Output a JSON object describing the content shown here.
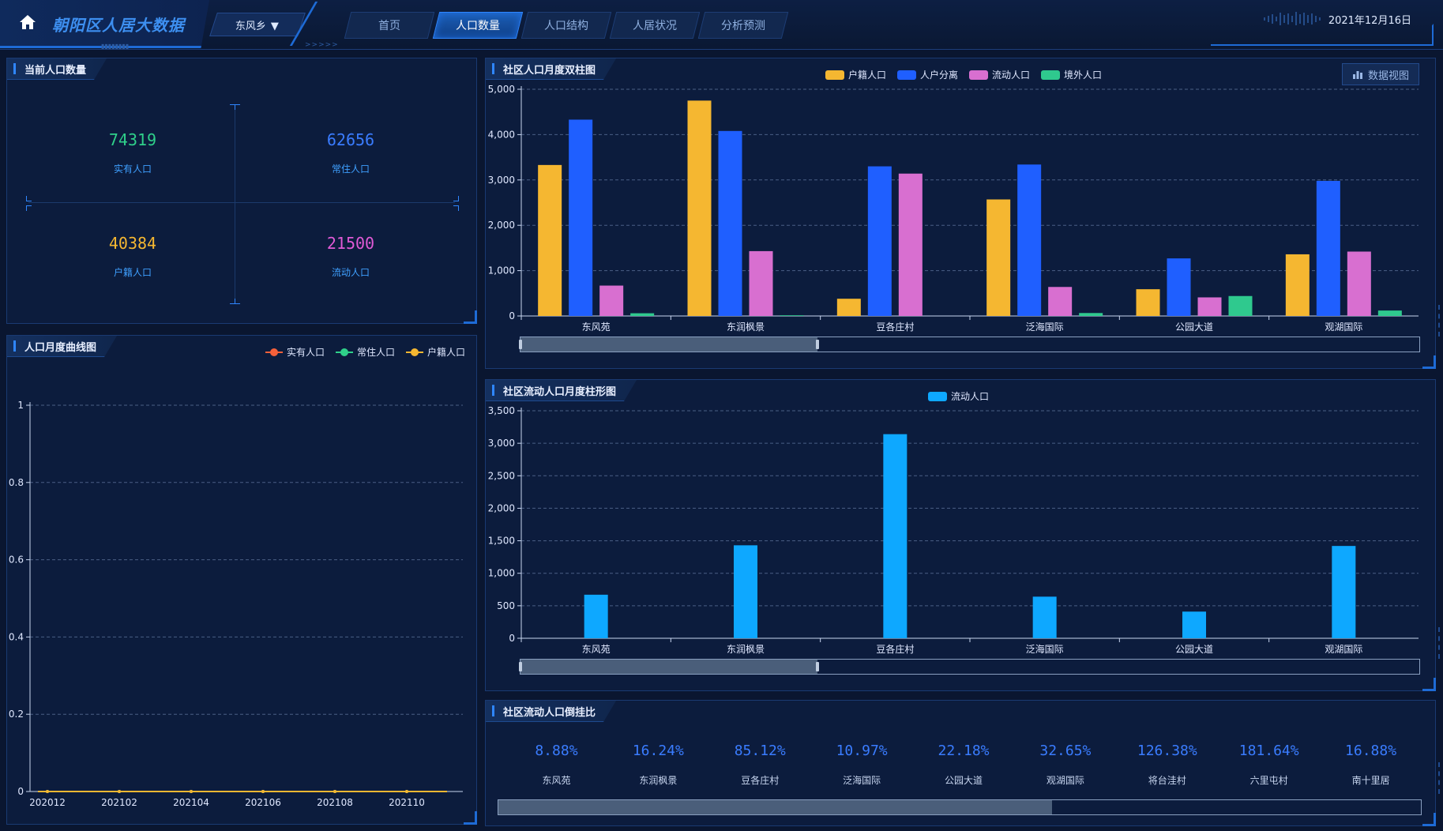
{
  "header": {
    "title": "朝阳区人居大数据",
    "region": "东风乡",
    "tabs": [
      {
        "label": "首页",
        "active": false
      },
      {
        "label": "人口数量",
        "active": true
      },
      {
        "label": "人口结构",
        "active": false
      },
      {
        "label": "人居状况",
        "active": false
      },
      {
        "label": "分析预测",
        "active": false
      }
    ],
    "date": "2021年12月16日"
  },
  "current_population": {
    "title": "当前人口数量",
    "stats": [
      {
        "value": "74319",
        "label": "实有人口",
        "color": "#2fd08a"
      },
      {
        "value": "62656",
        "label": "常住人口",
        "color": "#3a7cff"
      },
      {
        "value": "40384",
        "label": "户籍人口",
        "color": "#f5b731"
      },
      {
        "value": "21500",
        "label": "流动人口",
        "color": "#e05ad6"
      }
    ]
  },
  "monthly_curve": {
    "title": "人口月度曲线图",
    "chart_data": {
      "type": "line",
      "x": [
        "202012",
        "202102",
        "202104",
        "202106",
        "202108",
        "202110"
      ],
      "series": [
        {
          "name": "实有人口",
          "color": "#f5603a",
          "values": [
            0,
            0,
            0,
            0,
            0,
            0
          ]
        },
        {
          "name": "常住人口",
          "color": "#2fd08a",
          "values": [
            0,
            0,
            0,
            0,
            0,
            0
          ]
        },
        {
          "name": "户籍人口",
          "color": "#f5b731",
          "values": [
            0,
            0,
            0,
            0,
            0,
            0
          ]
        }
      ],
      "ylim": [
        0,
        1
      ],
      "yticks": [
        "0",
        "0.2",
        "0.4",
        "0.6",
        "0.8",
        "1"
      ],
      "grid": true,
      "legend": "top-right"
    }
  },
  "community_bar": {
    "title": "社区人口月度双柱图",
    "data_view_label": "数据视图",
    "chart_data": {
      "type": "bar",
      "categories": [
        "东风苑",
        "东润枫景",
        "豆各庄村",
        "泛海国际",
        "公园大道",
        "观湖国际"
      ],
      "series": [
        {
          "name": "户籍人口",
          "color": "#f5b731",
          "values": [
            3330,
            4750,
            380,
            2570,
            590,
            1360
          ]
        },
        {
          "name": "人户分离",
          "color": "#1f5fff",
          "values": [
            4330,
            4080,
            3300,
            3340,
            1270,
            2980
          ]
        },
        {
          "name": "流动人口",
          "color": "#d86fd0",
          "values": [
            670,
            1430,
            3140,
            640,
            410,
            1420
          ]
        },
        {
          "name": "境外人口",
          "color": "#2fc98e",
          "values": [
            60,
            15,
            0,
            65,
            440,
            120
          ]
        }
      ],
      "ylim": [
        0,
        5000
      ],
      "yticks": [
        "0",
        "1,000",
        "2,000",
        "3,000",
        "4,000",
        "5,000"
      ],
      "grid": true,
      "legend": "top-center"
    }
  },
  "floating_bar": {
    "title": "社区流动人口月度柱形图",
    "chart_data": {
      "type": "bar",
      "categories": [
        "东风苑",
        "东润枫景",
        "豆各庄村",
        "泛海国际",
        "公园大道",
        "观湖国际"
      ],
      "series": [
        {
          "name": "流动人口",
          "color": "#0ea8ff",
          "values": [
            670,
            1430,
            3140,
            640,
            410,
            1420
          ]
        }
      ],
      "ylim": [
        0,
        3500
      ],
      "yticks": [
        "0",
        "500",
        "1,000",
        "1,500",
        "2,000",
        "2,500",
        "3,000",
        "3,500"
      ],
      "grid": true,
      "legend": "top-center"
    }
  },
  "ratio": {
    "title": "社区流动人口倒挂比",
    "items": [
      {
        "value": "8.88%",
        "name": "东风苑"
      },
      {
        "value": "16.24%",
        "name": "东润枫景"
      },
      {
        "value": "85.12%",
        "name": "豆各庄村"
      },
      {
        "value": "10.97%",
        "name": "泛海国际"
      },
      {
        "value": "22.18%",
        "name": "公园大道"
      },
      {
        "value": "32.65%",
        "name": "观湖国际"
      },
      {
        "value": "126.38%",
        "name": "将台洼村"
      },
      {
        "value": "181.64%",
        "name": "六里屯村"
      },
      {
        "value": "16.88%",
        "name": "南十里居"
      }
    ],
    "scroll_fraction": 0.6
  },
  "zoom": {
    "community_bar_fraction": 0.33,
    "floating_bar_fraction": 0.33
  }
}
